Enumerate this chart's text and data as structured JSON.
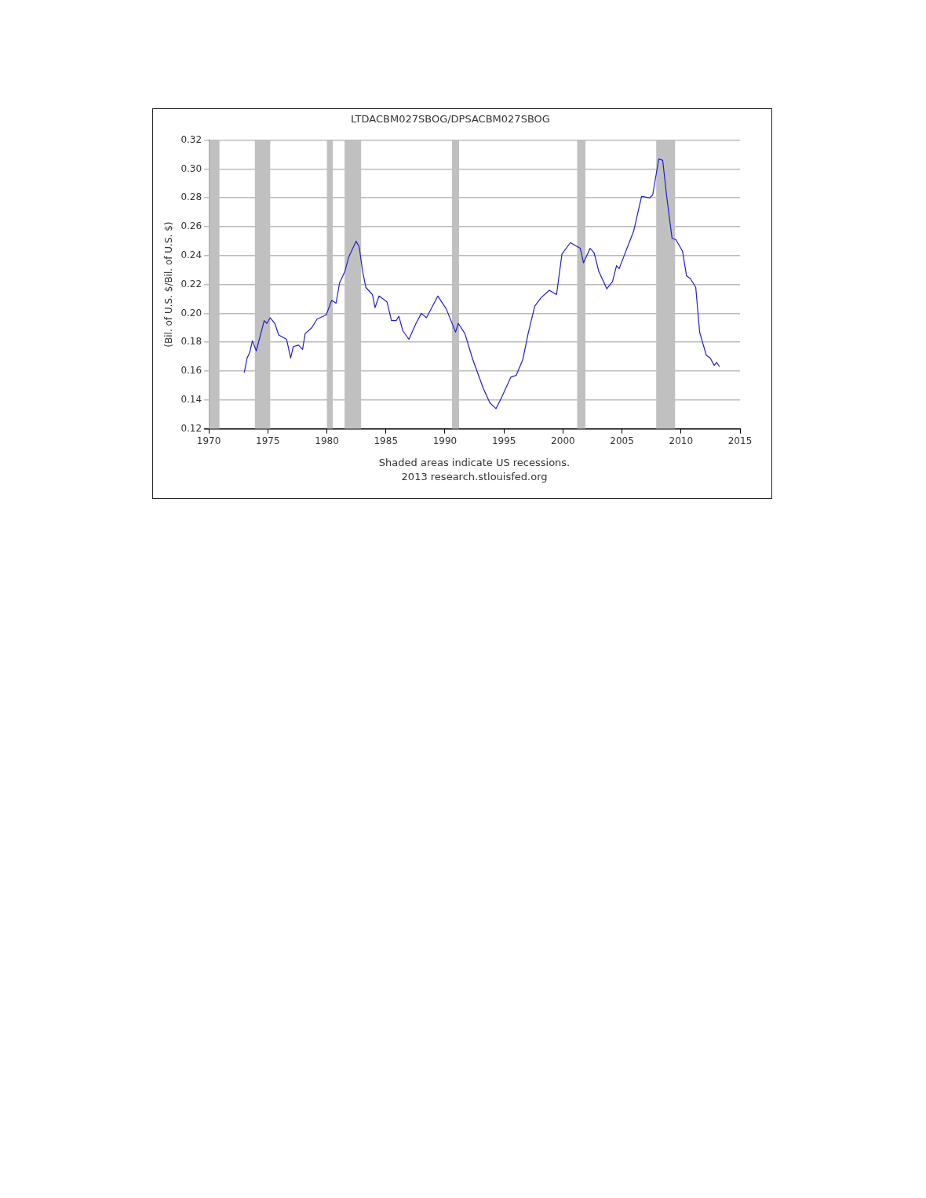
{
  "chart_data": {
    "type": "line",
    "title": "LTDACBM027SBOG/DPSACBM027SBOG",
    "ylabel": "(Bil. of U.S. $/Bil. of U.S. $)",
    "x": [
      1973.0,
      1973.24,
      1973.47,
      1973.69,
      1974.02,
      1974.69,
      1974.92,
      1975.19,
      1975.59,
      1975.92,
      1976.59,
      1976.93,
      1977.16,
      1977.6,
      1977.94,
      1978.16,
      1978.72,
      1979.17,
      1979.95,
      1980.4,
      1980.78,
      1981.07,
      1981.52,
      1981.85,
      1982.47,
      1982.74,
      1983.01,
      1983.3,
      1983.86,
      1984.08,
      1984.42,
      1985.09,
      1985.47,
      1985.87,
      1986.1,
      1986.43,
      1986.95,
      1987.55,
      1988.0,
      1988.44,
      1989.4,
      1990.12,
      1990.9,
      1991.13,
      1991.69,
      1992.36,
      1993.25,
      1993.81,
      1994.33,
      1994.82,
      1995.6,
      1996.04,
      1996.6,
      1997.05,
      1997.61,
      1998.17,
      1998.84,
      1999.46,
      1999.91,
      2000.63,
      2001.47,
      2001.74,
      2002.3,
      2002.64,
      2003.04,
      2003.71,
      2004.2,
      2004.54,
      2004.76,
      2005.99,
      2006.66,
      2007.34,
      2007.6,
      2008.12,
      2008.45,
      2008.79,
      2009.24,
      2009.57,
      2010.13,
      2010.47,
      2010.8,
      2011.25,
      2011.58,
      2012.14,
      2012.48,
      2012.81,
      2013.03,
      2013.26
    ],
    "series": [
      {
        "color": "#1f1fd0",
        "values": [
          0.159,
          0.169,
          0.173,
          0.181,
          0.174,
          0.195,
          0.193,
          0.197,
          0.193,
          0.185,
          0.182,
          0.169,
          0.177,
          0.178,
          0.175,
          0.186,
          0.19,
          0.196,
          0.199,
          0.209,
          0.207,
          0.221,
          0.229,
          0.239,
          0.25,
          0.246,
          0.23,
          0.218,
          0.213,
          0.204,
          0.212,
          0.208,
          0.195,
          0.195,
          0.198,
          0.188,
          0.182,
          0.193,
          0.2,
          0.197,
          0.212,
          0.203,
          0.187,
          0.193,
          0.186,
          0.168,
          0.148,
          0.138,
          0.134,
          0.142,
          0.156,
          0.157,
          0.168,
          0.186,
          0.205,
          0.211,
          0.216,
          0.213,
          0.241,
          0.249,
          0.245,
          0.235,
          0.245,
          0.242,
          0.229,
          0.217,
          0.222,
          0.233,
          0.231,
          0.257,
          0.281,
          0.28,
          0.282,
          0.307,
          0.306,
          0.281,
          0.252,
          0.251,
          0.243,
          0.226,
          0.224,
          0.218,
          0.187,
          0.171,
          0.169,
          0.164,
          0.166,
          0.163
        ]
      }
    ],
    "xlim": [
      1970,
      2015
    ],
    "xticks": [
      1970,
      1975,
      1980,
      1985,
      1990,
      1995,
      2000,
      2005,
      2010,
      2015
    ],
    "ylim": [
      0.12,
      0.32
    ],
    "yticks": [
      {
        "value": 0.12,
        "label": "0.12"
      },
      {
        "value": 0.14,
        "label": "0.14"
      },
      {
        "value": 0.16,
        "label": "0.16"
      },
      {
        "value": 0.18,
        "label": "0.18"
      },
      {
        "value": 0.2,
        "label": "0.20"
      },
      {
        "value": 0.22,
        "label": "0.22"
      },
      {
        "value": 0.24,
        "label": "0.24"
      },
      {
        "value": 0.26,
        "label": "0.26"
      },
      {
        "value": 0.28,
        "label": "0.28"
      },
      {
        "value": 0.3,
        "label": "0.30"
      },
      {
        "value": 0.32,
        "label": "0.32"
      }
    ],
    "bands": [
      {
        "axis": "x",
        "from": 1970,
        "to": 1970.9,
        "color": "#c0c0c0"
      },
      {
        "axis": "x",
        "from": 1973.9,
        "to": 1975.2,
        "color": "#c0c0c0"
      },
      {
        "axis": "x",
        "from": 1980.0,
        "to": 1980.5,
        "color": "#c0c0c0"
      },
      {
        "axis": "x",
        "from": 1981.5,
        "to": 1982.9,
        "color": "#c0c0c0"
      },
      {
        "axis": "x",
        "from": 1990.6,
        "to": 1991.2,
        "color": "#c0c0c0"
      },
      {
        "axis": "x",
        "from": 2001.2,
        "to": 2001.9,
        "color": "#c0c0c0"
      },
      {
        "axis": "x",
        "from": 2007.9,
        "to": 2009.5,
        "color": "#c0c0c0"
      }
    ],
    "annotations": [
      "Shaded areas indicate US recessions.",
      "2013 research.stlouisfed.org"
    ],
    "grid": "y",
    "legend": false,
    "marker": "none",
    "line_style": "solid"
  }
}
